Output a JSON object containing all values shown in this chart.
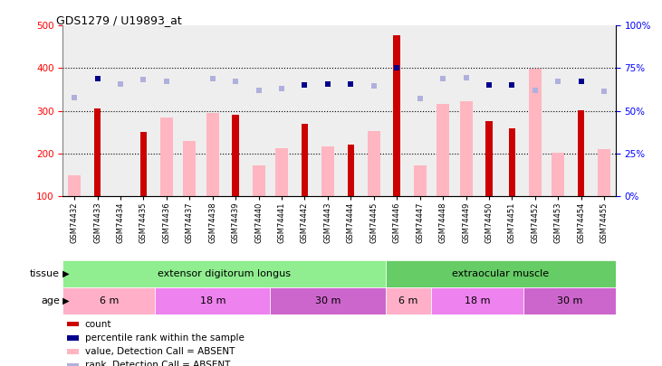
{
  "title": "GDS1279 / U19893_at",
  "samples": [
    "GSM74432",
    "GSM74433",
    "GSM74434",
    "GSM74435",
    "GSM74436",
    "GSM74437",
    "GSM74438",
    "GSM74439",
    "GSM74440",
    "GSM74441",
    "GSM74442",
    "GSM74443",
    "GSM74444",
    "GSM74445",
    "GSM74446",
    "GSM74447",
    "GSM74448",
    "GSM74449",
    "GSM74450",
    "GSM74451",
    "GSM74452",
    "GSM74453",
    "GSM74454",
    "GSM74455"
  ],
  "count_dark": [
    null,
    305,
    null,
    250,
    null,
    null,
    null,
    290,
    null,
    null,
    270,
    null,
    220,
    null,
    478,
    null,
    null,
    null,
    275,
    258,
    null,
    null,
    302,
    null
  ],
  "count_light": [
    148,
    null,
    null,
    null,
    285,
    228,
    295,
    null,
    172,
    212,
    null,
    217,
    null,
    253,
    null,
    172,
    317,
    323,
    null,
    null,
    399,
    202,
    null,
    210
  ],
  "percentile_dark": [
    null,
    375,
    null,
    null,
    null,
    null,
    null,
    null,
    null,
    null,
    360,
    362,
    362,
    null,
    400,
    null,
    null,
    null,
    360,
    360,
    null,
    null,
    370,
    null
  ],
  "percentile_light": [
    330,
    null,
    362,
    373,
    368,
    null,
    375,
    370,
    348,
    352,
    null,
    null,
    null,
    358,
    null,
    328,
    375,
    378,
    null,
    null,
    348,
    368,
    null,
    345
  ],
  "ylim": [
    100,
    500
  ],
  "right_ylim": [
    0,
    100
  ],
  "right_yticks": [
    0,
    25,
    50,
    75,
    100
  ],
  "right_yticklabels": [
    "0%",
    "25%",
    "50%",
    "75%",
    "100%"
  ],
  "left_yticks": [
    100,
    200,
    300,
    400,
    500
  ],
  "dotted_lines": [
    200,
    300,
    400
  ],
  "tissue_groups": [
    {
      "label": "extensor digitorum longus",
      "start": 0,
      "end": 14,
      "color": "#90EE90"
    },
    {
      "label": "extraocular muscle",
      "start": 14,
      "end": 24,
      "color": "#66CC66"
    }
  ],
  "age_groups": [
    {
      "label": "6 m",
      "start": 0,
      "end": 4,
      "color": "#FFB0C8"
    },
    {
      "label": "18 m",
      "start": 4,
      "end": 9,
      "color": "#EE82EE"
    },
    {
      "label": "30 m",
      "start": 9,
      "end": 14,
      "color": "#CC66CC"
    },
    {
      "label": "6 m",
      "start": 14,
      "end": 16,
      "color": "#FFB0C8"
    },
    {
      "label": "18 m",
      "start": 16,
      "end": 20,
      "color": "#EE82EE"
    },
    {
      "label": "30 m",
      "start": 20,
      "end": 24,
      "color": "#CC66CC"
    }
  ],
  "dark_red": "#CC0000",
  "light_pink": "#FFB6C1",
  "dark_blue": "#00008B",
  "light_blue": "#B0B0DD",
  "legend_items": [
    {
      "color": "#CC0000",
      "label": "count"
    },
    {
      "color": "#00008B",
      "label": "percentile rank within the sample"
    },
    {
      "color": "#FFB6C1",
      "label": "value, Detection Call = ABSENT"
    },
    {
      "color": "#B0B0DD",
      "label": "rank, Detection Call = ABSENT"
    }
  ]
}
